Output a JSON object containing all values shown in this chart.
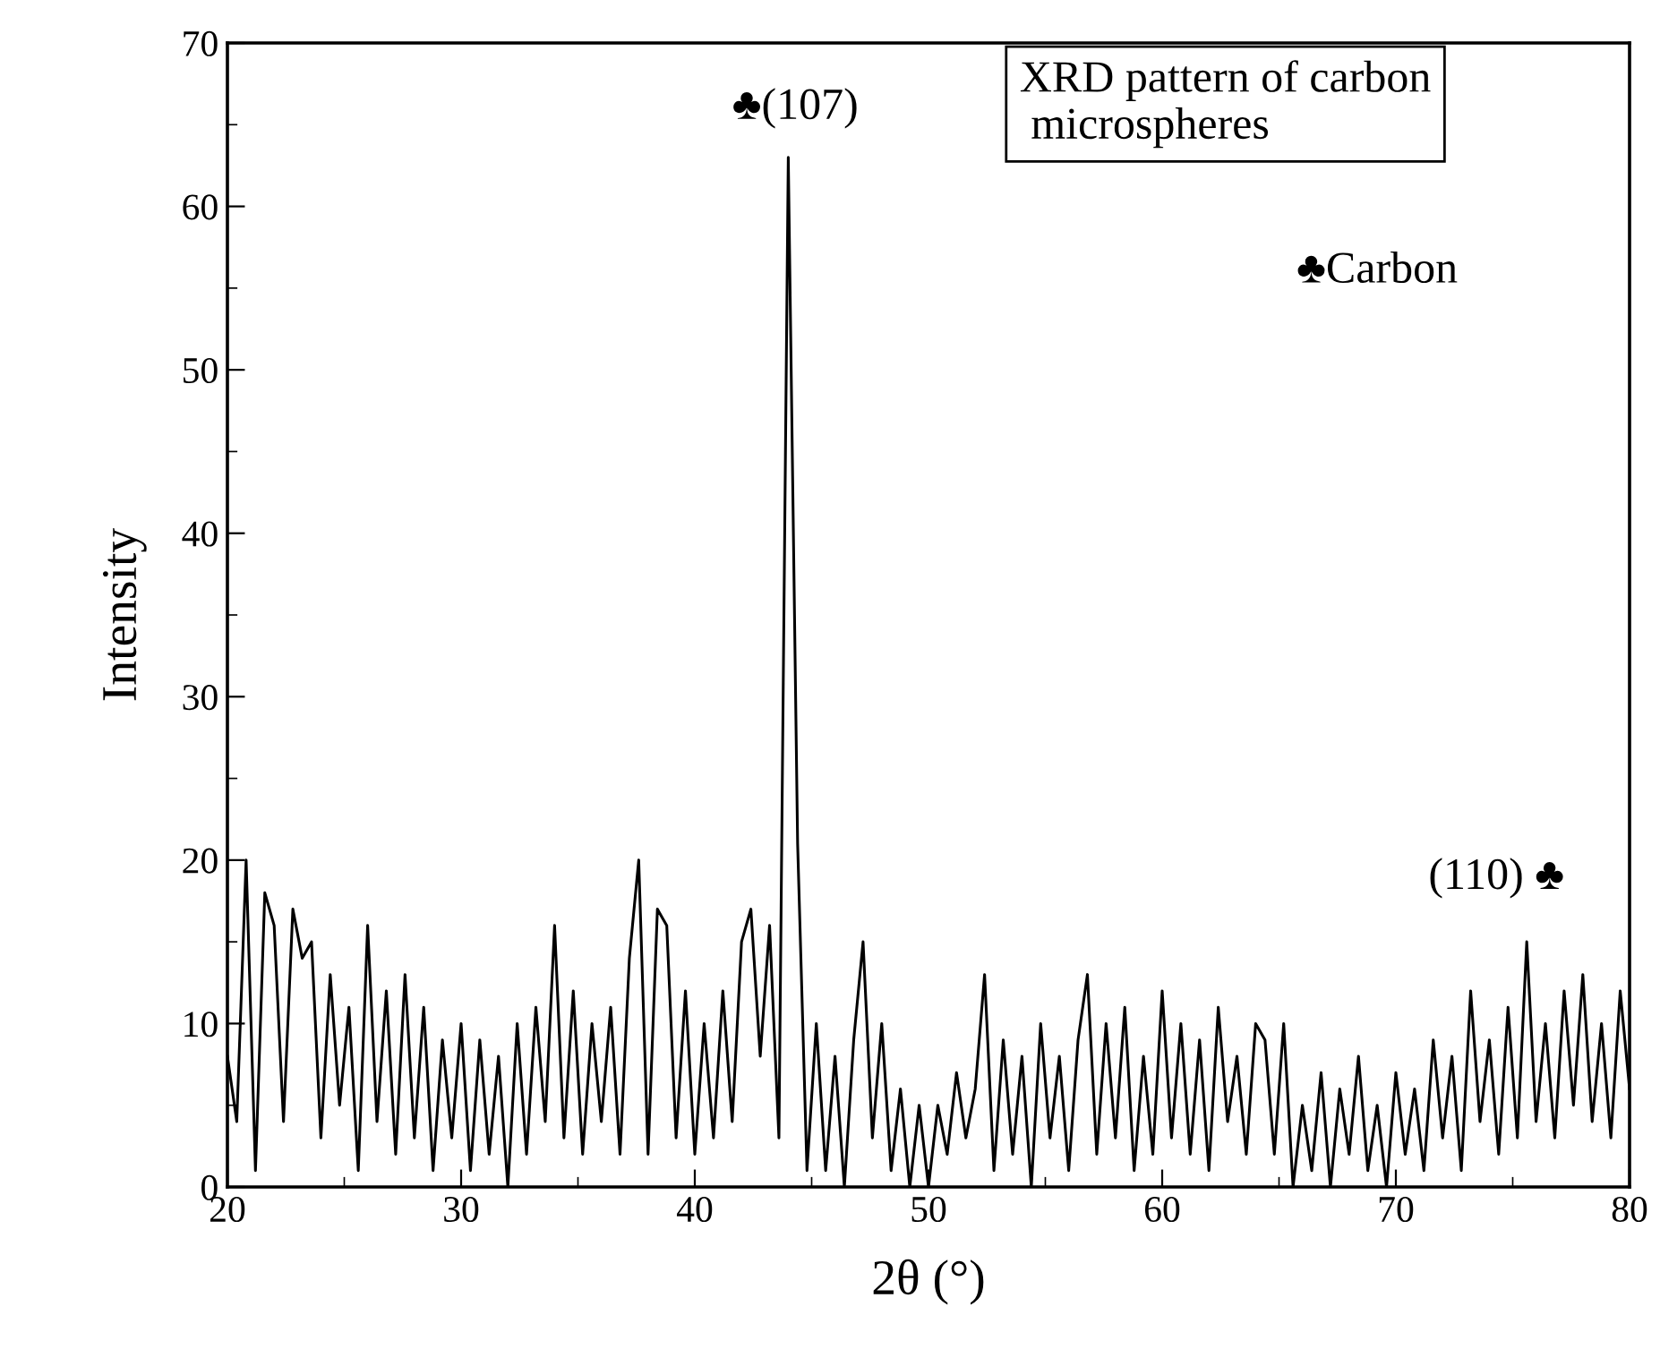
{
  "chart_data": {
    "type": "line",
    "title": "XRD pattern of carbon\n microspheres",
    "xlabel": "2θ (°)",
    "ylabel": "Intensity",
    "x": [
      20.0,
      20.4,
      20.8,
      21.2,
      21.6,
      22.0,
      22.4,
      22.8,
      23.2,
      23.6,
      24.0,
      24.4,
      24.8,
      25.2,
      25.6,
      26.0,
      26.4,
      26.8,
      27.2,
      27.6,
      28.0,
      28.4,
      28.8,
      29.2,
      29.6,
      30.0,
      30.4,
      30.8,
      31.2,
      31.6,
      32.0,
      32.4,
      32.8,
      33.2,
      33.6,
      34.0,
      34.4,
      34.8,
      35.2,
      35.6,
      36.0,
      36.4,
      36.8,
      37.2,
      37.6,
      38.0,
      38.4,
      38.8,
      39.2,
      39.6,
      40.0,
      40.4,
      40.8,
      41.2,
      41.6,
      42.0,
      42.4,
      42.8,
      43.2,
      43.6,
      44.0,
      44.4,
      44.8,
      45.2,
      45.6,
      46.0,
      46.4,
      46.8,
      47.2,
      47.6,
      48.0,
      48.4,
      48.8,
      49.2,
      49.6,
      50.0,
      50.4,
      50.8,
      51.2,
      51.6,
      52.0,
      52.4,
      52.8,
      53.2,
      53.6,
      54.0,
      54.4,
      54.8,
      55.2,
      55.6,
      56.0,
      56.4,
      56.8,
      57.2,
      57.6,
      58.0,
      58.4,
      58.8,
      59.2,
      59.6,
      60.0,
      60.4,
      60.8,
      61.2,
      61.6,
      62.0,
      62.4,
      62.8,
      63.2,
      63.6,
      64.0,
      64.4,
      64.8,
      65.2,
      65.6,
      66.0,
      66.4,
      66.8,
      67.2,
      67.6,
      68.0,
      68.4,
      68.8,
      69.2,
      69.6,
      70.0,
      70.4,
      70.8,
      71.2,
      71.6,
      72.0,
      72.4,
      72.8,
      73.2,
      73.6,
      74.0,
      74.4,
      74.8,
      75.2,
      75.6,
      76.0,
      76.4,
      76.8,
      77.2,
      77.6,
      78.0,
      78.4,
      78.8,
      79.2,
      79.6,
      80.0
    ],
    "series": [
      {
        "color": "#000000",
        "values": [
          8,
          4,
          20,
          1,
          18,
          16,
          4,
          17,
          14,
          15,
          3,
          13,
          5,
          11,
          1,
          16,
          4,
          12,
          2,
          13,
          3,
          11,
          1,
          9,
          3,
          10,
          1,
          9,
          2,
          8,
          0,
          10,
          2,
          11,
          4,
          16,
          3,
          12,
          2,
          10,
          4,
          11,
          2,
          14,
          20,
          2,
          17,
          16,
          3,
          12,
          2,
          10,
          3,
          12,
          4,
          15,
          17,
          8,
          16,
          3,
          63,
          21,
          1,
          10,
          1,
          8,
          0,
          9,
          15,
          3,
          10,
          1,
          6,
          0,
          5,
          0,
          5,
          2,
          7,
          3,
          6,
          13,
          1,
          9,
          2,
          8,
          0,
          10,
          3,
          8,
          1,
          9,
          13,
          2,
          10,
          3,
          11,
          1,
          8,
          2,
          12,
          3,
          10,
          2,
          9,
          1,
          11,
          4,
          8,
          2,
          10,
          9,
          2,
          10,
          0,
          5,
          1,
          7,
          0,
          6,
          2,
          8,
          1,
          5,
          0,
          7,
          2,
          6,
          1,
          9,
          3,
          8,
          1,
          12,
          4,
          9,
          2,
          11,
          3,
          15,
          4,
          10,
          3,
          12,
          5,
          13,
          4,
          10,
          3,
          12,
          6
        ]
      }
    ],
    "xlim": [
      20,
      80
    ],
    "ylim": [
      0,
      70
    ],
    "xticks": [
      20,
      30,
      40,
      50,
      60,
      70,
      80
    ],
    "yticks": [
      0,
      10,
      20,
      30,
      40,
      50,
      60,
      70
    ],
    "annotations": [
      "♣(107)",
      "(110) ♣",
      "♣Carbon"
    ],
    "grid": false,
    "legend": false,
    "marker": "none",
    "line_style": "solid"
  }
}
